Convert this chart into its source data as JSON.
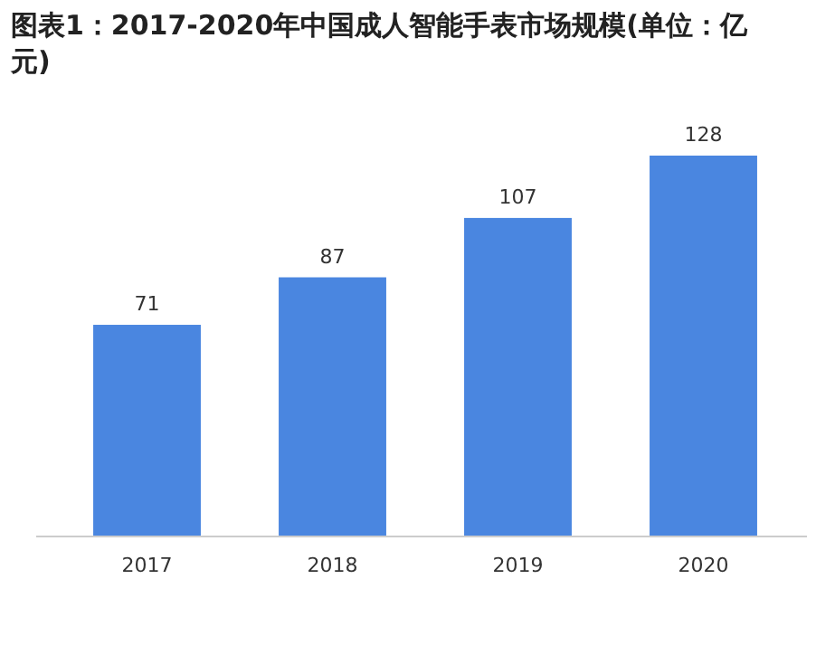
{
  "chart_data": {
    "type": "bar",
    "title": "图表1：2017-2020年中国成人智能手表市场规模(单位：亿元)",
    "categories": [
      "2017",
      "2018",
      "2019",
      "2020"
    ],
    "values": [
      71,
      87,
      107,
      128
    ],
    "color": "#4a86e0",
    "data_labels": true
  }
}
